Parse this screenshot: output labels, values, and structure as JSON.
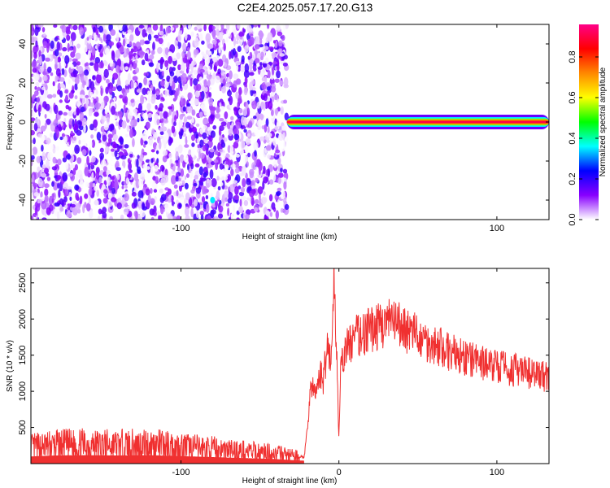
{
  "title": "C2E4.2025.057.17.20.G13",
  "chart_data": [
    {
      "type": "heatmap",
      "title": "",
      "xlabel": "Height of straight line (km)",
      "ylabel": "Frequency (Hz)",
      "xlim": [
        -195,
        133
      ],
      "ylim": [
        -50,
        50
      ],
      "x_ticks": [
        -100,
        0,
        100
      ],
      "x_tick_labels": [
        "-100",
        "",
        "100"
      ],
      "y_ticks": [
        -40,
        -20,
        0,
        20,
        40
      ],
      "y_tick_labels": [
        "-40",
        "-20",
        "0",
        "20",
        "40"
      ],
      "colorbar": {
        "label": "Normalized spectral amplitude",
        "range": [
          0,
          0.96
        ],
        "ticks": [
          0.0,
          0.2,
          0.4,
          0.6,
          0.8
        ],
        "tick_labels": [
          "0.0",
          "0.2",
          "0.4",
          "0.6",
          "0.8"
        ],
        "colormap": [
          "#ffffff",
          "#8800ff",
          "#0000ff",
          "#00ffff",
          "#00ff00",
          "#ffff00",
          "#ff8800",
          "#ff0000",
          "#ff0088"
        ]
      },
      "regions": [
        {
          "x_range": [
            -195,
            -33
          ],
          "y_range": [
            -50,
            50
          ],
          "amplitude_range": [
            0.0,
            0.2
          ],
          "description": "noise"
        },
        {
          "x_range": [
            -33,
            133
          ],
          "y_range": [
            -2.5,
            2.5
          ],
          "center_y": 0,
          "peak_amplitude": 0.9
        },
        {
          "x": -80,
          "y": -40,
          "amplitude": 0.35
        }
      ]
    },
    {
      "type": "line",
      "title": "",
      "xlabel": "Height of straight line (km)",
      "ylabel": "SNR (10 * v/v)",
      "xlim": [
        -195,
        133
      ],
      "ylim": [
        0,
        2700
      ],
      "x_ticks": [
        -100,
        0,
        100
      ],
      "x_tick_labels": [
        "-100",
        "0",
        "100"
      ],
      "y_ticks": [
        500,
        1000,
        1500,
        2000,
        2500
      ],
      "y_tick_labels": [
        "500",
        "1000",
        "1500",
        "2000",
        "2500"
      ],
      "color": "#f03030",
      "x": [
        -195,
        -180,
        -160,
        -140,
        -120,
        -100,
        -80,
        -60,
        -40,
        -30,
        -22,
        -20,
        -18,
        -15,
        -12,
        -10,
        -7,
        -5,
        -3,
        -1,
        0,
        1,
        3,
        5,
        10,
        20,
        30,
        40,
        50,
        60,
        70,
        80,
        90,
        100,
        110,
        120,
        133
      ],
      "y": [
        220,
        250,
        260,
        250,
        260,
        230,
        200,
        170,
        140,
        110,
        90,
        450,
        1100,
        950,
        1250,
        1150,
        1700,
        1350,
        2600,
        1250,
        350,
        1200,
        1500,
        1600,
        1750,
        1850,
        1950,
        1900,
        1750,
        1650,
        1550,
        1450,
        1400,
        1350,
        1300,
        1250,
        1200
      ]
    }
  ]
}
